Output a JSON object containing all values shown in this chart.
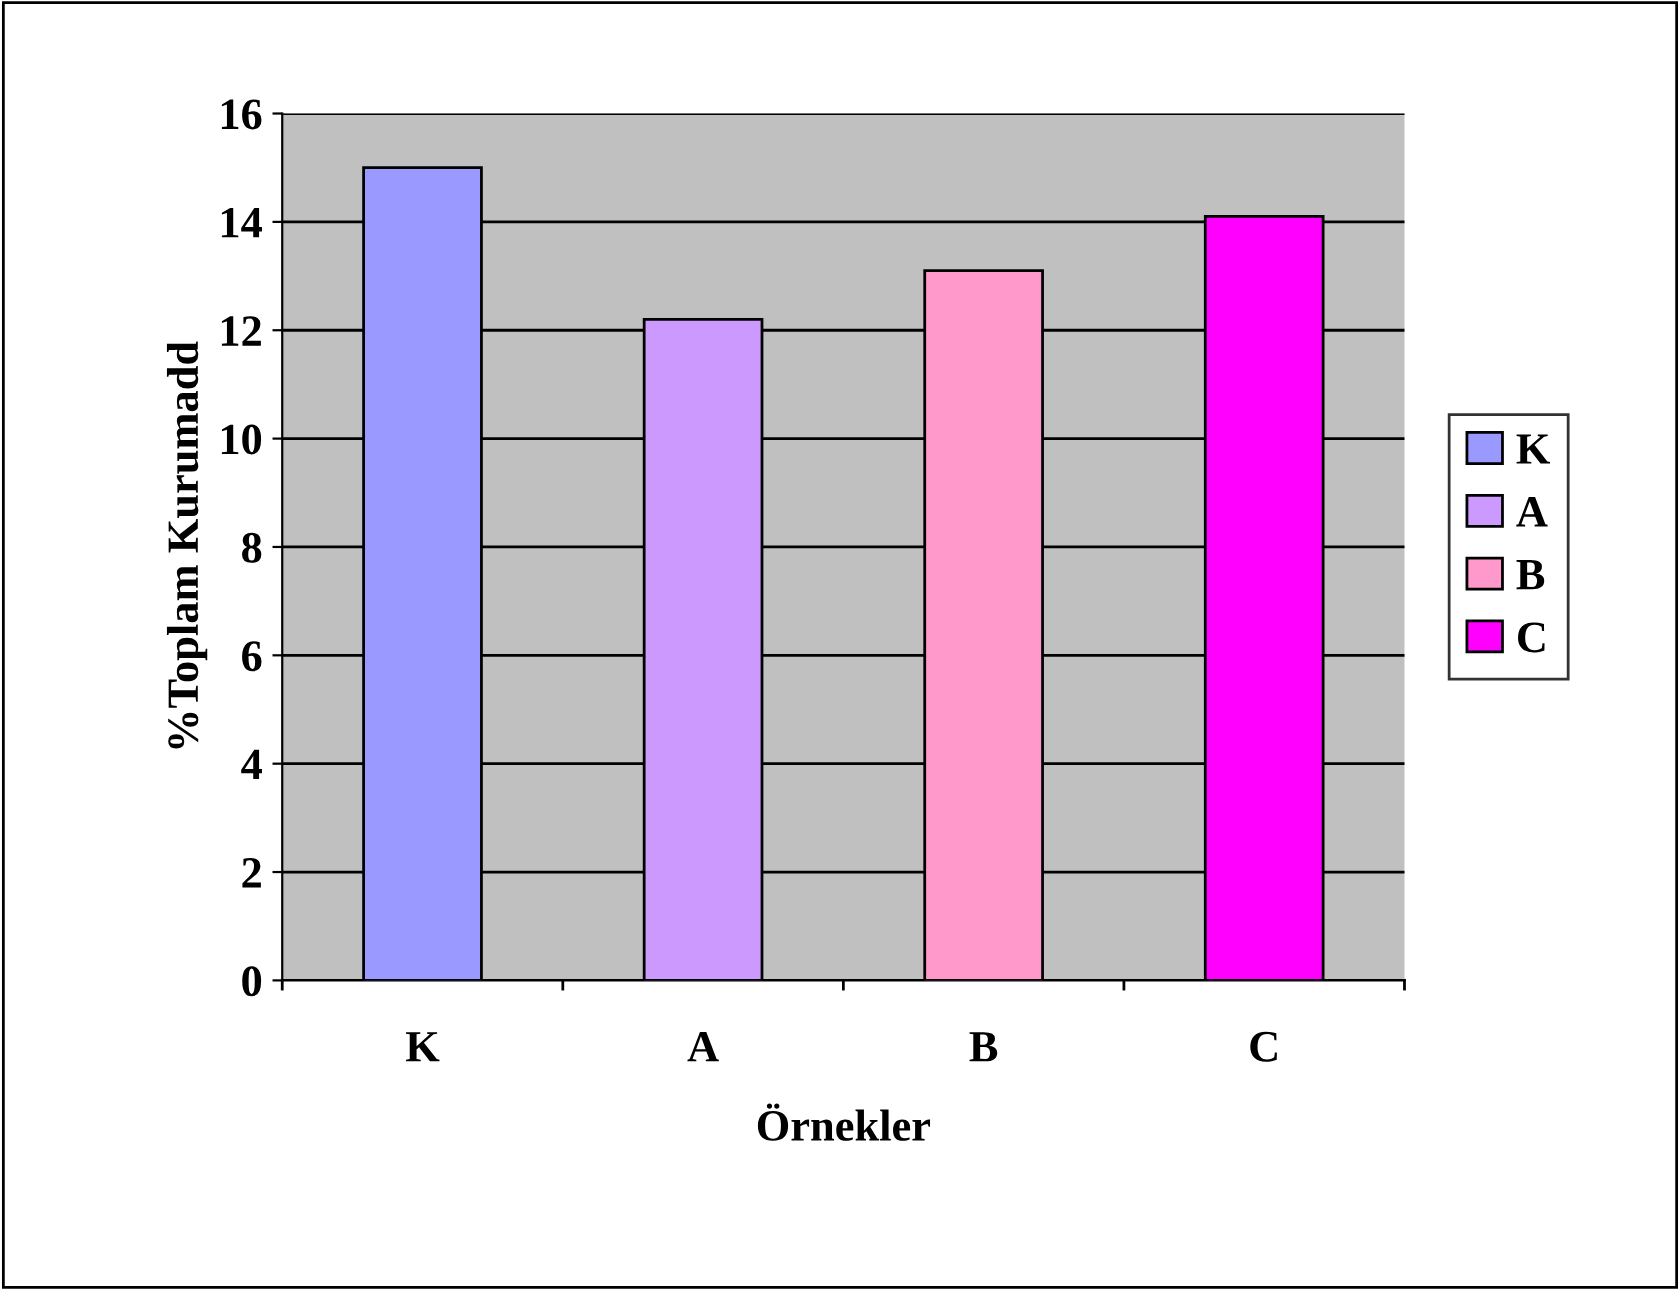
{
  "chart_data": {
    "type": "bar",
    "xlabel": "Örnekler",
    "ylabel": "%Toplam Kurumadd",
    "categories": [
      "K",
      "A",
      "B",
      "C"
    ],
    "series": [
      {
        "name": "K",
        "color": "#9999ff",
        "values": [
          15.0,
          null,
          null,
          null
        ]
      },
      {
        "name": "A",
        "color": "#cc99ff",
        "values": [
          null,
          12.2,
          null,
          null
        ]
      },
      {
        "name": "B",
        "color": "#ff99cc",
        "values": [
          null,
          null,
          13.1,
          null
        ]
      },
      {
        "name": "C",
        "color": "#ff00ff",
        "values": [
          null,
          null,
          null,
          14.1
        ]
      }
    ],
    "ylim": [
      0,
      16
    ],
    "yticks": [
      0,
      2,
      4,
      6,
      8,
      10,
      12,
      14,
      16
    ],
    "grid": "y",
    "legend": "right"
  }
}
